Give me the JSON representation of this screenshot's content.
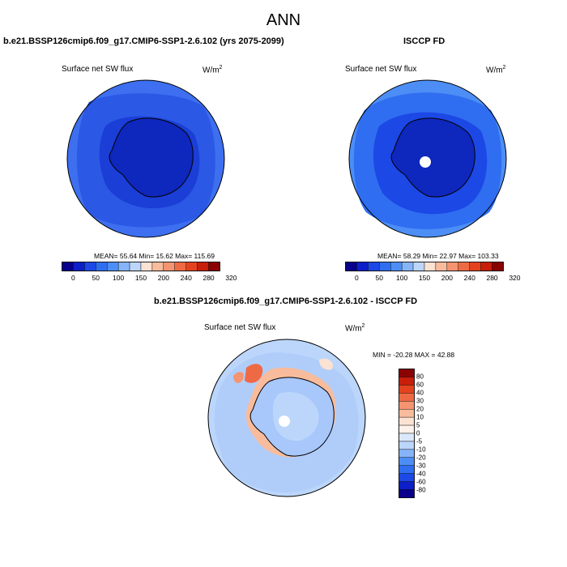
{
  "title": "ANN",
  "panels": [
    {
      "title": "b.e21.BSSP126cmip6.f09_g17.CMIP6-SSP1-2.6.102 (yrs 2075-2099)",
      "variable": "Surface net SW flux",
      "units": "W/m",
      "units_sup": "2",
      "stats": "MEAN=  55.64  Min=  15.62  Max= 115.69"
    },
    {
      "title": "ISCCP FD",
      "variable": "Surface net SW flux",
      "units": "W/m",
      "units_sup": "2",
      "stats": "MEAN=  58.29  Min=  22.97  Max= 103.33"
    },
    {
      "title": "b.e21.BSSP126cmip6.f09_g17.CMIP6-SSP1-2.6.102 - ISCCP FD",
      "variable": "Surface net SW flux",
      "units": "W/m",
      "units_sup": "2",
      "stats": "MIN = -20.28 MAX =  42.88"
    }
  ],
  "colorbar_horizontal": {
    "labels": [
      "0",
      "50",
      "100",
      "150",
      "200",
      "240",
      "280",
      "320"
    ],
    "colors": [
      "#08008a",
      "#0c1fc8",
      "#1c48e6",
      "#2f6ef0",
      "#4d8ef6",
      "#86b4f8",
      "#bcd6fb",
      "#fbe2d2",
      "#f8bc9c",
      "#f49470",
      "#ee6a44",
      "#e4421f",
      "#c81e0c",
      "#8a0303"
    ]
  },
  "colorbar_vertical": {
    "labels": [
      "80",
      "60",
      "40",
      "30",
      "20",
      "10",
      "5",
      "0",
      "-5",
      "-10",
      "-20",
      "-30",
      "-40",
      "-60",
      "-80"
    ],
    "colors": [
      "#8a0303",
      "#c81e0c",
      "#e4421f",
      "#ee6a44",
      "#f49470",
      "#f8bc9c",
      "#fbe2d2",
      "#fdf1ea",
      "#dbe8fb",
      "#bcd6fb",
      "#86b4f8",
      "#4d8ef6",
      "#2f6ef0",
      "#1c48e6",
      "#0c1fc8",
      "#08008a"
    ]
  }
}
